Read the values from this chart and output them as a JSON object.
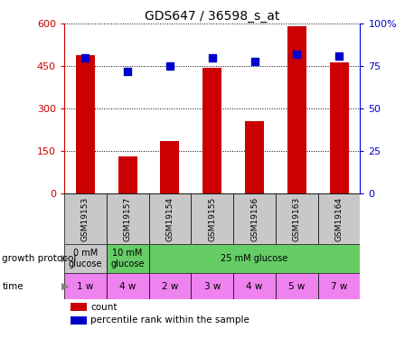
{
  "title": "GDS647 / 36598_s_at",
  "samples": [
    "GSM19153",
    "GSM19157",
    "GSM19154",
    "GSM19155",
    "GSM19156",
    "GSM19163",
    "GSM19164"
  ],
  "counts": [
    490,
    130,
    185,
    445,
    255,
    590,
    465
  ],
  "percentiles": [
    80,
    72,
    75,
    80,
    78,
    82,
    81
  ],
  "ylim_left": [
    0,
    600
  ],
  "yticks_left": [
    0,
    150,
    300,
    450,
    600
  ],
  "ylim_right": [
    0,
    100
  ],
  "yticks_right": [
    0,
    25,
    50,
    75,
    100
  ],
  "bar_color": "#cc0000",
  "dot_color": "#0000cc",
  "left_tick_color": "#cc0000",
  "right_tick_color": "#0000cc",
  "time_labels": [
    "1 w",
    "4 w",
    "2 w",
    "3 w",
    "4 w",
    "5 w",
    "7 w"
  ],
  "time_color": "#ee82ee",
  "sample_bg_color": "#c8c8c8",
  "growth_protocol_color_0": "#c8c8c8",
  "growth_protocol_color_1": "#66cc66",
  "legend_items": [
    {
      "color": "#cc0000",
      "label": "count"
    },
    {
      "color": "#0000cc",
      "label": "percentile rank within the sample"
    }
  ]
}
